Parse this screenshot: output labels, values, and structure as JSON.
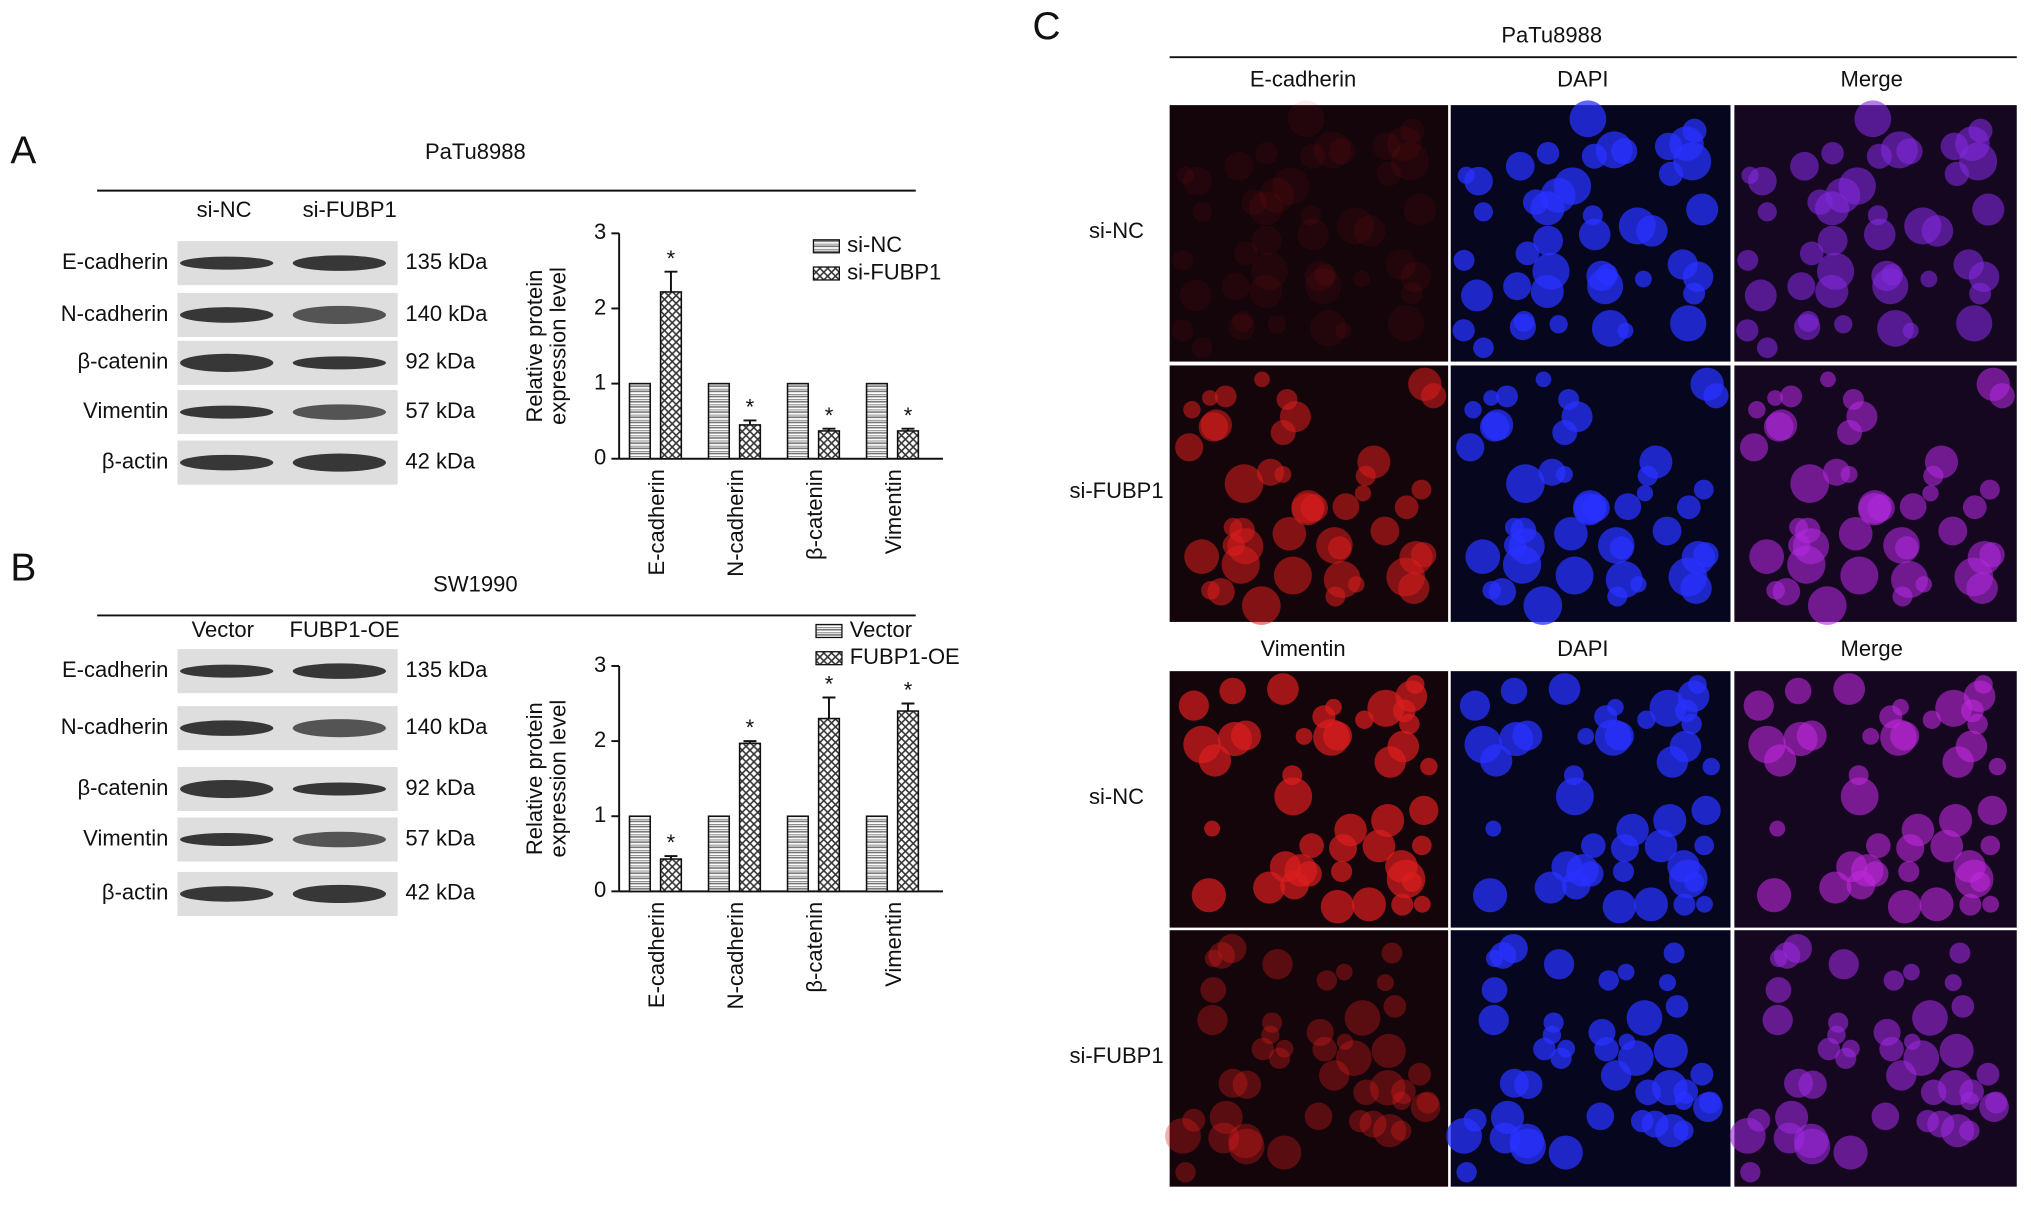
{
  "chart_data": [
    {
      "type": "bar",
      "ylabel": [
        "Relative protein",
        "expression level"
      ],
      "categories": [
        "E-cadherin",
        "N-cadherin",
        "β-catenin",
        "Vimentin"
      ],
      "series": [
        {
          "name": "si-NC",
          "color": "#777777",
          "values": [
            1,
            1,
            1,
            1
          ]
        },
        {
          "name": "si-FUBP1",
          "color": "#333333",
          "values": [
            2.22,
            0.45,
            0.37,
            0.37
          ],
          "errors": [
            0.27,
            0.06,
            0.03,
            0.03
          ]
        }
      ],
      "annotations": [
        "*",
        "*",
        "*",
        "*"
      ],
      "ylim": [
        0,
        3
      ],
      "yticks": [
        0,
        1,
        2,
        3
      ],
      "legend": "upper right"
    },
    {
      "type": "bar",
      "ylabel": [
        "Relative protein",
        "expression level"
      ],
      "categories": [
        "E-cadherin",
        "N-cadherin",
        "β-catenin",
        "Vimentin"
      ],
      "series": [
        {
          "name": "Vector",
          "color": "#777777",
          "values": [
            1,
            1,
            1,
            1
          ]
        },
        {
          "name": "FUBP1-OE",
          "color": "#333333",
          "values": [
            0.43,
            1.97,
            2.3,
            2.4
          ],
          "errors": [
            0.04,
            0.03,
            0.28,
            0.1
          ]
        }
      ],
      "annotations": [
        "*",
        "*",
        "*",
        "*"
      ],
      "ylim": [
        0,
        3
      ],
      "yticks": [
        0,
        1,
        2,
        3
      ],
      "legend": "upper right"
    }
  ],
  "panels": [
    {
      "letter": "A",
      "title": "PaTu8988",
      "lanes": [
        "si-NC",
        "si-FUBP1"
      ],
      "rows": [
        {
          "protein": "E-cadherin",
          "size": "135 kDa"
        },
        {
          "protein": "N-cadherin",
          "size": "140 kDa"
        },
        {
          "protein": "β-catenin",
          "size": "92 kDa"
        },
        {
          "protein": "Vimentin",
          "size": "57 kDa"
        },
        {
          "protein": "β-actin",
          "size": "42 kDa"
        }
      ]
    },
    {
      "letter": "B",
      "title": "SW1990",
      "lanes": [
        "Vector",
        "FUBP1-OE"
      ],
      "rows": [
        {
          "protein": "E-cadherin",
          "size": "135 kDa"
        },
        {
          "protein": "N-cadherin",
          "size": "140 kDa"
        },
        {
          "protein": "β-catenin",
          "size": "92 kDa"
        },
        {
          "protein": "Vimentin",
          "size": "57 kDa"
        },
        {
          "protein": "β-actin",
          "size": "42 kDa"
        }
      ]
    }
  ],
  "panel_c": {
    "letter": "C",
    "title": "PaTu8988",
    "groups": [
      {
        "headers": [
          "E-cadherin",
          "DAPI",
          "Merge"
        ],
        "rows": [
          "si-NC",
          "si-FUBP1"
        ]
      },
      {
        "headers": [
          "Vimentin",
          "DAPI",
          "Merge"
        ],
        "rows": [
          "si-NC",
          "si-FUBP1"
        ]
      }
    ]
  }
}
